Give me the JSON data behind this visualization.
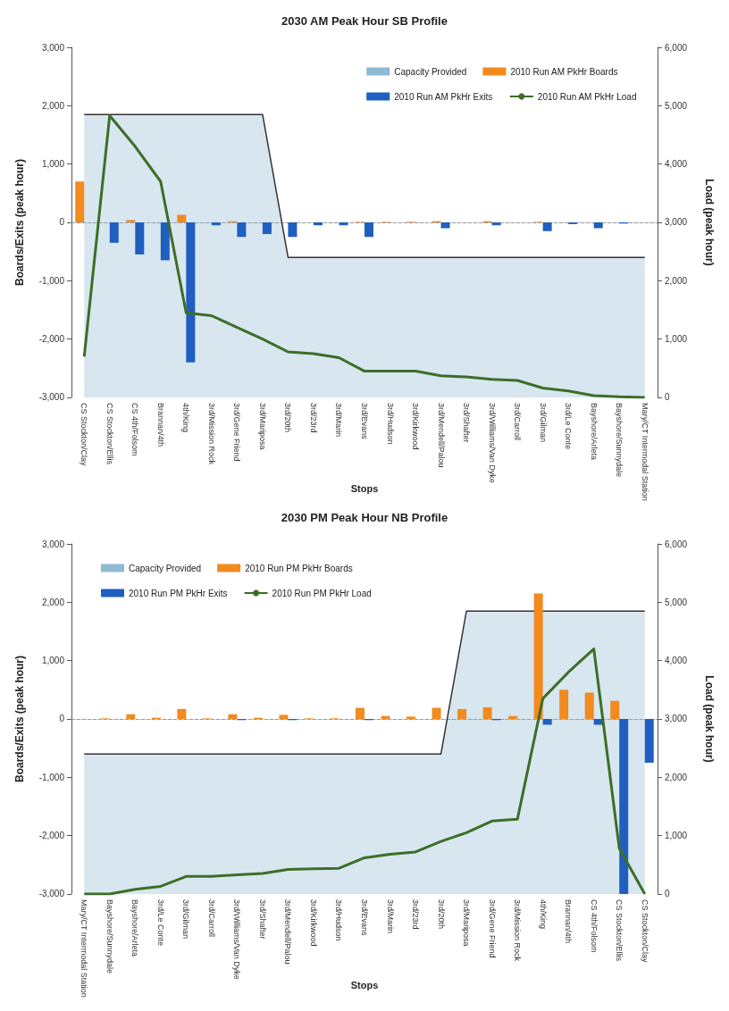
{
  "chart_data": [
    {
      "type": "bar",
      "title": "2030 AM Peak Hour SB Profile",
      "xlabel": "Stops",
      "ylabel": "Boards/Exits (peak hour)",
      "y2label": "Load (peak hour)",
      "categories": [
        "CS Stockton/Clay",
        "CS Stockton/Ellis",
        "CS 4th/Folsom",
        "Brannan/4th",
        "4th/King",
        "3rd/Mission Rock",
        "3rd/Gene Friend",
        "3rd/Mariposa",
        "3rd/20th",
        "3rd/23rd",
        "3rd/Marin",
        "3rd/Evans",
        "3rd/Hudson",
        "3rd/Kirkwood",
        "3rd/Mendell/Palou",
        "3rd/Shafter",
        "3rd/Williams/Van Dyke",
        "3rd/Carroll",
        "3rd/Gilman",
        "3rd/Le Conte",
        "Bayshore/Arleta",
        "Bayshore/Sunnydale",
        "Mary/CT Intermodal Station"
      ],
      "series": [
        {
          "name": "Capacity Provided",
          "type": "area",
          "axis": "y2",
          "color": "#8fb8d3",
          "values": [
            4850,
            4850,
            4850,
            4850,
            4850,
            4850,
            4850,
            4850,
            2400,
            2400,
            2400,
            2400,
            2400,
            2400,
            2400,
            2400,
            2400,
            2400,
            2400,
            2400,
            2400,
            2400,
            2400
          ]
        },
        {
          "name": "2010 Run AM PkHr Boards",
          "color": "#f28a1e",
          "values": [
            700,
            null,
            40,
            0,
            130,
            0,
            20,
            0,
            0,
            0,
            0,
            10,
            10,
            10,
            20,
            0,
            20,
            0,
            10,
            0,
            0,
            0,
            0
          ]
        },
        {
          "name": "2010 Run AM PkHr Exits",
          "color": "#1f5fbf",
          "values": [
            0,
            -350,
            -550,
            -650,
            -2400,
            -50,
            -250,
            -200,
            -250,
            -50,
            -50,
            -250,
            0,
            0,
            -100,
            0,
            -50,
            0,
            -150,
            -30,
            -100,
            -20,
            0
          ]
        },
        {
          "name": "2010 Run AM PkHr Load",
          "type": "line",
          "axis": "y2",
          "color": "#3c6e26",
          "values": [
            700,
            4830,
            4300,
            3700,
            1450,
            1400,
            1200,
            1000,
            780,
            750,
            680,
            450,
            450,
            450,
            370,
            350,
            310,
            290,
            160,
            110,
            30,
            10,
            0
          ]
        }
      ],
      "ylim": [
        -3000,
        3000
      ],
      "yticks": [
        {
          "value": -3000,
          "label": "-3,000"
        },
        {
          "value": -2000,
          "label": "-2,000"
        },
        {
          "value": -1000,
          "label": "-1,000"
        },
        0,
        {
          "value": 1000,
          "label": "1,000"
        },
        {
          "value": 2000,
          "label": "2,000"
        },
        {
          "value": 3000,
          "label": "3,000"
        }
      ],
      "y2lim": [
        0,
        6000
      ],
      "y2ticks": [
        0,
        {
          "value": 1000,
          "label": "1,000"
        },
        {
          "value": 2000,
          "label": "2,000"
        },
        {
          "value": 3000,
          "label": "3,000"
        },
        {
          "value": 4000,
          "label": "4,000"
        },
        {
          "value": 5000,
          "label": "5,000"
        },
        {
          "value": 6000,
          "label": "6,000"
        }
      ],
      "legend": "top right"
    },
    {
      "type": "bar",
      "title": "2030 PM Peak Hour NB Profile",
      "xlabel": "Stops",
      "ylabel": "Boards/Exits (peak hour)",
      "y2label": "Load (peak hour)",
      "categories": [
        "Mary/CT Intermodal Station",
        "Bayshore/Sunnydale",
        "Bayshore/Arleta",
        "3rd/Le Conte",
        "3rd/Gilman",
        "3rd/Carroll",
        "3rd/Williams/Van Dyke",
        "3rd/Shafter",
        "3rd/Mendell/Palou",
        "3rd/Kirkwood",
        "3rd/Hudson",
        "3rd/Evans",
        "3rd/Marin",
        "3rd/23rd",
        "3rd/20th",
        "3rd/Mariposa",
        "3rd/Gene Friend",
        "3rd/Mission Rock",
        "4th/King",
        "Brannan/4th",
        "CS 4th/Folsom",
        "CS Stockton/Ellis",
        "CS Stockton/Clay"
      ],
      "series": [
        {
          "name": "Capacity Provided",
          "type": "area",
          "axis": "y2",
          "color": "#8fb8d3",
          "values": [
            2400,
            2400,
            2400,
            2400,
            2400,
            2400,
            2400,
            2400,
            2400,
            2400,
            2400,
            2400,
            2400,
            2400,
            2400,
            4850,
            4850,
            4850,
            4850,
            4850,
            4850,
            4850,
            4850
          ]
        },
        {
          "name": "2010 Run PM PkHr Boards",
          "color": "#f28a1e",
          "values": [
            0,
            10,
            80,
            20,
            170,
            10,
            80,
            20,
            70,
            10,
            10,
            190,
            50,
            40,
            190,
            170,
            200,
            50,
            2150,
            500,
            450,
            310,
            0
          ]
        },
        {
          "name": "2010 Run PM PkHr Exits",
          "color": "#1f5fbf",
          "values": [
            0,
            0,
            0,
            0,
            0,
            0,
            -20,
            0,
            -20,
            0,
            0,
            -20,
            0,
            0,
            0,
            0,
            -20,
            0,
            -100,
            0,
            -100,
            -3000,
            -750
          ]
        },
        {
          "name": "2010 Run PM PkHr Load",
          "type": "line",
          "axis": "y2",
          "color": "#3c6e26",
          "values": [
            0,
            0,
            80,
            130,
            300,
            300,
            330,
            350,
            420,
            430,
            440,
            620,
            680,
            720,
            900,
            1050,
            1250,
            1280,
            3350,
            3800,
            4200,
            780,
            0
          ]
        }
      ],
      "ylim": [
        -3000,
        3000
      ],
      "yticks": [
        {
          "value": -3000,
          "label": "-3,000"
        },
        {
          "value": -2000,
          "label": "-2,000"
        },
        {
          "value": -1000,
          "label": "-1,000"
        },
        0,
        {
          "value": 1000,
          "label": "1,000"
        },
        {
          "value": 2000,
          "label": "2,000"
        },
        {
          "value": 3000,
          "label": "3,000"
        }
      ],
      "y2lim": [
        0,
        6000
      ],
      "y2ticks": [
        0,
        {
          "value": 1000,
          "label": "1,000"
        },
        {
          "value": 2000,
          "label": "2,000"
        },
        {
          "value": 3000,
          "label": "3,000"
        },
        {
          "value": 4000,
          "label": "4,000"
        },
        {
          "value": 5000,
          "label": "5,000"
        },
        {
          "value": 6000,
          "label": "6,000"
        }
      ],
      "legend": "top left"
    }
  ]
}
